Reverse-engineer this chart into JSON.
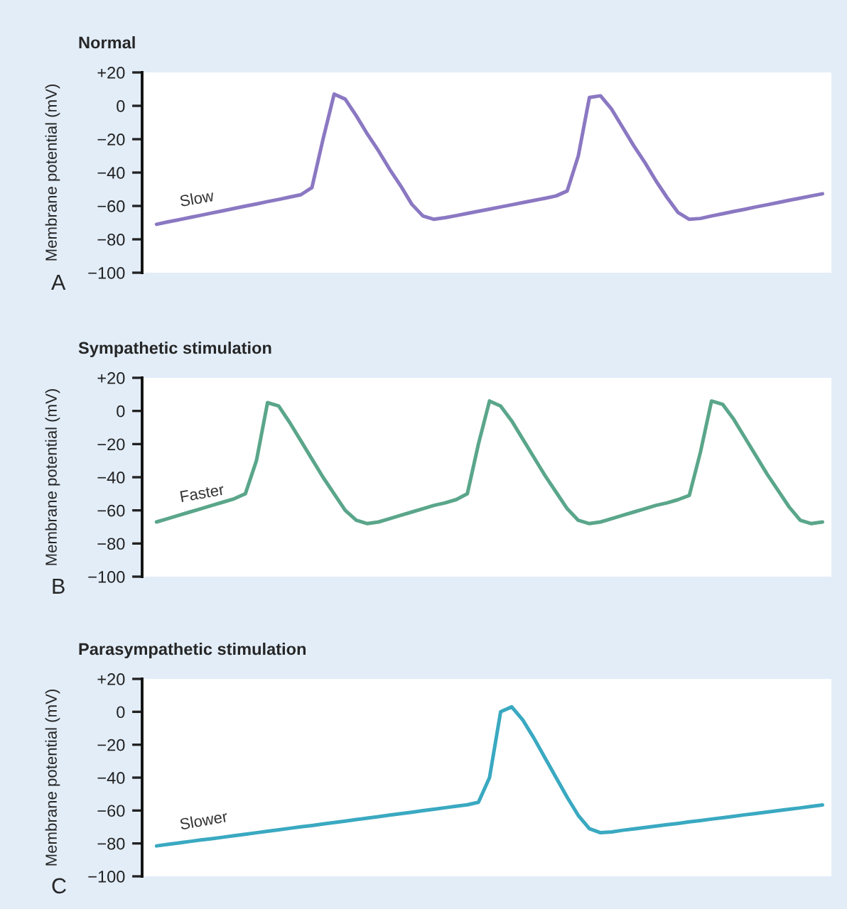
{
  "chart_data": [
    {
      "type": "line",
      "title": "Normal",
      "ylabel": "Membrane potential (mV)",
      "ylim": [
        -100,
        20
      ],
      "yticks": [
        {
          "value": 20,
          "label": "+20"
        },
        0,
        {
          "value": -20,
          "label": "−20"
        },
        {
          "value": -40,
          "label": "−40"
        },
        {
          "value": -60,
          "label": "−60"
        },
        {
          "value": -80,
          "label": "−80"
        },
        {
          "value": -100,
          "label": "−100"
        }
      ],
      "tick_labels": "y",
      "grid": false,
      "annotations": [
        "Slow",
        "A"
      ],
      "categories": [
        null,
        null,
        null,
        null,
        null,
        null,
        null,
        null,
        null,
        null,
        null,
        null,
        null,
        null,
        null,
        null,
        null,
        null,
        null,
        null,
        null,
        null,
        null,
        null,
        null,
        null,
        null,
        null,
        null,
        null,
        null,
        null,
        null,
        null,
        null,
        null,
        null,
        null,
        null,
        null,
        null,
        null,
        null,
        null,
        null,
        null,
        null,
        null,
        null,
        null,
        null,
        null,
        null,
        null,
        null,
        null,
        null,
        null,
        null,
        null,
        null
      ],
      "series": [
        {
          "color": "#8b78c2",
          "values": [
            -71,
            -69.6,
            -68.3,
            -66.9,
            -65.6,
            -64.2,
            -62.9,
            -61.5,
            -60.1,
            -58.8,
            -57.4,
            -56.1,
            -54.7,
            -53.3,
            -49,
            -20,
            7,
            4,
            -6,
            -17,
            -27,
            -38,
            -48,
            -59,
            -66,
            -68,
            -67,
            -65.8,
            -64.5,
            -63.2,
            -61.9,
            -60.6,
            -59.3,
            -58,
            -56.7,
            -55.4,
            -54,
            -51,
            -30,
            5,
            6,
            -2,
            -13,
            -24,
            -34,
            -45,
            -55,
            -64,
            -68,
            -67.5,
            -66,
            -64.7,
            -63.3,
            -62,
            -60.6,
            -59.3,
            -58,
            -56.6,
            -55.3,
            -54,
            -52.7
          ]
        }
      ]
    },
    {
      "type": "line",
      "title": "Sympathetic stimulation",
      "ylabel": "Membrane potential (mV)",
      "ylim": [
        -100,
        20
      ],
      "yticks": [
        {
          "value": 20,
          "label": "+20"
        },
        0,
        {
          "value": -20,
          "label": "−20"
        },
        {
          "value": -40,
          "label": "−40"
        },
        {
          "value": -60,
          "label": "−60"
        },
        {
          "value": -80,
          "label": "−80"
        },
        {
          "value": -100,
          "label": "−100"
        }
      ],
      "tick_labels": "y",
      "grid": false,
      "annotations": [
        "Faster",
        "B"
      ],
      "categories": [
        null,
        null,
        null,
        null,
        null,
        null,
        null,
        null,
        null,
        null,
        null,
        null,
        null,
        null,
        null,
        null,
        null,
        null,
        null,
        null,
        null,
        null,
        null,
        null,
        null,
        null,
        null,
        null,
        null,
        null,
        null,
        null,
        null,
        null,
        null,
        null,
        null,
        null,
        null,
        null,
        null,
        null,
        null,
        null,
        null,
        null,
        null,
        null,
        null,
        null,
        null,
        null,
        null,
        null,
        null,
        null,
        null,
        null,
        null,
        null,
        null
      ],
      "series": [
        {
          "color": "#5aa68b",
          "values": [
            -67,
            -65,
            -63,
            -61,
            -59,
            -57,
            -55,
            -53,
            -50,
            -30,
            5,
            3,
            -7,
            -18,
            -29,
            -40,
            -50,
            -60,
            -66,
            -68,
            -67,
            -65,
            -63,
            -61,
            -59,
            -57,
            -55.5,
            -53.5,
            -50,
            -20,
            6,
            3,
            -6,
            -17,
            -28,
            -39,
            -49,
            -59,
            -66,
            -68,
            -67,
            -65,
            -63,
            -61,
            -59,
            -57,
            -55.5,
            -53.5,
            -51,
            -25,
            6,
            4,
            -5,
            -16,
            -27,
            -38,
            -48,
            -58,
            -66,
            -68,
            -67
          ]
        }
      ]
    },
    {
      "type": "line",
      "title": "Parasympathetic stimulation",
      "ylabel": "Membrane potential (mV)",
      "ylim": [
        -100,
        20
      ],
      "yticks": [
        {
          "value": 20,
          "label": "+20"
        },
        0,
        {
          "value": -20,
          "label": "−20"
        },
        {
          "value": -40,
          "label": "−40"
        },
        {
          "value": -60,
          "label": "−60"
        },
        {
          "value": -80,
          "label": "−80"
        },
        {
          "value": -100,
          "label": "−100"
        }
      ],
      "tick_labels": "y",
      "grid": false,
      "annotations": [
        "Slower",
        "C"
      ],
      "categories": [
        null,
        null,
        null,
        null,
        null,
        null,
        null,
        null,
        null,
        null,
        null,
        null,
        null,
        null,
        null,
        null,
        null,
        null,
        null,
        null,
        null,
        null,
        null,
        null,
        null,
        null,
        null,
        null,
        null,
        null,
        null,
        null,
        null,
        null,
        null,
        null,
        null,
        null,
        null,
        null,
        null,
        null,
        null,
        null,
        null,
        null,
        null,
        null,
        null,
        null,
        null,
        null,
        null,
        null,
        null,
        null,
        null,
        null,
        null,
        null,
        null
      ],
      "series": [
        {
          "color": "#3aa9c1",
          "values": [
            -81.5,
            -80.6,
            -79.7,
            -78.8,
            -77.9,
            -77.1,
            -76.2,
            -75.3,
            -74.4,
            -73.5,
            -72.6,
            -71.7,
            -70.8,
            -69.9,
            -69.1,
            -68.2,
            -67.3,
            -66.4,
            -65.5,
            -64.6,
            -63.7,
            -62.8,
            -61.9,
            -61,
            -60.1,
            -59.2,
            -58.3,
            -57.4,
            -56.5,
            -55,
            -40,
            0,
            3,
            -5,
            -16,
            -28,
            -40,
            -52,
            -63,
            -71,
            -73.5,
            -73,
            -72,
            -71.2,
            -70.3,
            -69.5,
            -68.6,
            -67.8,
            -66.9,
            -66.1,
            -65.2,
            -64.4,
            -63.5,
            -62.6,
            -61.8,
            -60.9,
            -60.1,
            -59.2,
            -58.4,
            -57.5,
            -56.6
          ]
        }
      ]
    }
  ]
}
